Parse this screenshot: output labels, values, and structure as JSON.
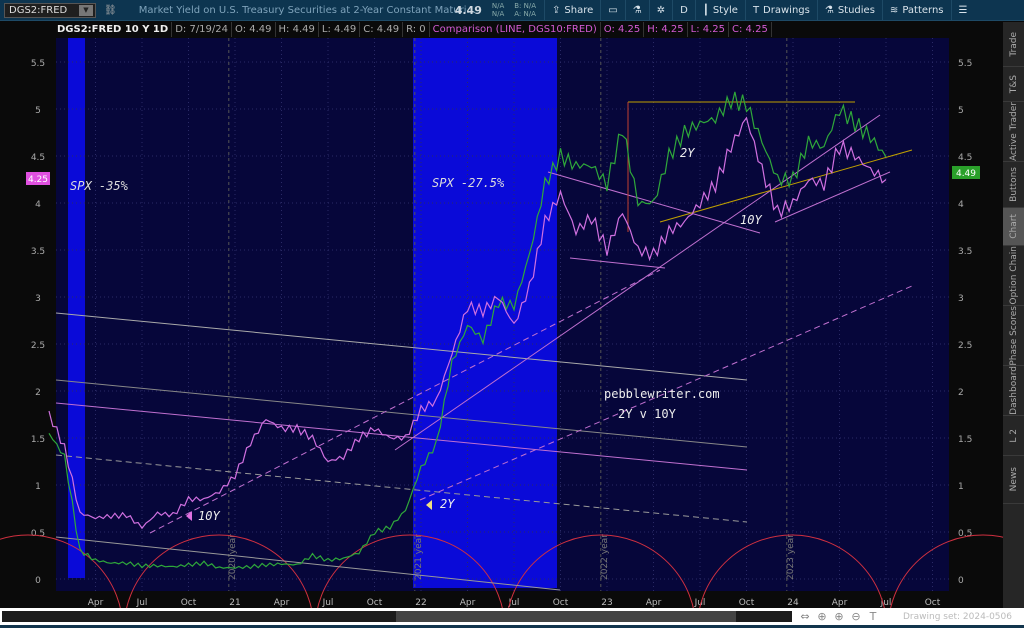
{
  "toolbar": {
    "symbol": "DGS2:FRED",
    "description": "Market Yield on U.S. Treasury Securities at 2-Year Constant Maturi...",
    "last": "4.49",
    "na1": "N/A",
    "na2": "N/A",
    "bid": "B: N/A",
    "ask": "A: N/A",
    "buttons": [
      {
        "label": "Share",
        "icon": "share-icon"
      },
      {
        "label": "",
        "icon": "alert-icon"
      },
      {
        "label": "",
        "icon": "flask-icon"
      },
      {
        "label": "",
        "icon": "gear-icon"
      },
      {
        "label": "D",
        "icon": ""
      },
      {
        "label": "Style",
        "icon": "candle-icon"
      },
      {
        "label": "Drawings",
        "icon": "text-t-icon"
      },
      {
        "label": "Studies",
        "icon": "flask-icon"
      },
      {
        "label": "Patterns",
        "icon": "pattern-icon"
      },
      {
        "label": "",
        "icon": "menu-icon"
      }
    ]
  },
  "info": {
    "title": "DGS2:FRED 10 Y 1D",
    "d": "D: 7/19/24",
    "o": "O: 4.49",
    "h": "H: 4.49",
    "l": "L: 4.49",
    "c": "C: 4.49",
    "r": "R: 0",
    "comp": "Comparison (LINE, DGS10:FRED)",
    "co": "O: 4.25",
    "ch": "H: 4.25",
    "cl": "L: 4.25",
    "cc": "C: 4.25"
  },
  "side_tabs": [
    "Trade",
    "T&S",
    "Active Trader",
    "Buttons",
    "Chart",
    "Option Chain",
    "Phase Scores",
    "Dashboard",
    "L 2",
    "News"
  ],
  "active_tab": "Chart",
  "bottom": {
    "drawing_set": "Drawing set: 2024-0506"
  },
  "colors": {
    "two_year": "#2fa83a",
    "ten_year": "#d070e0",
    "shade": "#0a0ad8",
    "bg": "#06063a",
    "cycle": "#d03040"
  },
  "chart_data": {
    "type": "line",
    "title": "",
    "ylim": [
      0,
      5.5
    ],
    "yticks": [
      "0",
      "0.5",
      "1",
      "1.5",
      "2",
      "2.5",
      "3",
      "3.5",
      "4",
      "4.5",
      "5",
      "5.5"
    ],
    "xticks": [
      "Apr",
      "Jul",
      "Oct",
      "21",
      "Apr",
      "Jul",
      "Oct",
      "22",
      "Apr",
      "Jul",
      "Oct",
      "23",
      "Apr",
      "Jul",
      "Oct",
      "24",
      "Apr",
      "Jul",
      "Oct"
    ],
    "x_start": "2020-01",
    "x_step": "month",
    "series": [
      {
        "name": "DGS2",
        "values": [
          1.55,
          1.3,
          0.3,
          0.2,
          0.17,
          0.17,
          0.14,
          0.14,
          0.13,
          0.15,
          0.17,
          0.12,
          0.12,
          0.13,
          0.15,
          0.16,
          0.15,
          0.25,
          0.2,
          0.22,
          0.28,
          0.5,
          0.55,
          0.73,
          1.18,
          1.44,
          2.3,
          2.7,
          2.55,
          2.95,
          2.9,
          3.45,
          4.2,
          4.5,
          4.4,
          4.4,
          4.2,
          4.8,
          4.0,
          4.0,
          4.5,
          4.75,
          4.85,
          4.9,
          5.1,
          5.05,
          4.65,
          4.25,
          4.25,
          4.65,
          4.6,
          5.0,
          4.85,
          4.7,
          4.49
        ]
      },
      {
        "name": "DGS10",
        "values": [
          1.75,
          1.4,
          0.7,
          0.65,
          0.67,
          0.68,
          0.55,
          0.7,
          0.68,
          0.85,
          0.85,
          0.93,
          1.1,
          1.45,
          1.7,
          1.6,
          1.6,
          1.5,
          1.25,
          1.3,
          1.5,
          1.6,
          1.5,
          1.5,
          1.8,
          1.9,
          2.4,
          2.9,
          2.85,
          3.0,
          2.7,
          3.1,
          3.8,
          4.1,
          3.7,
          3.85,
          3.5,
          3.9,
          3.5,
          3.45,
          3.7,
          3.8,
          4.0,
          4.2,
          4.6,
          4.9,
          4.35,
          3.9,
          4.0,
          4.25,
          4.2,
          4.6,
          4.5,
          4.35,
          4.25
        ]
      }
    ],
    "price_labels": {
      "left": "4.25",
      "right": "4.49"
    },
    "year_labels": [
      "2020 year",
      "2021 year",
      "2022 year",
      "2023 year"
    ],
    "annotations": [
      "SPX -35%",
      "SPX -27.5%",
      "2Y",
      "10Y",
      "2Y",
      "10Y",
      "pebblewriter.com",
      "2Y v 10Y"
    ]
  }
}
